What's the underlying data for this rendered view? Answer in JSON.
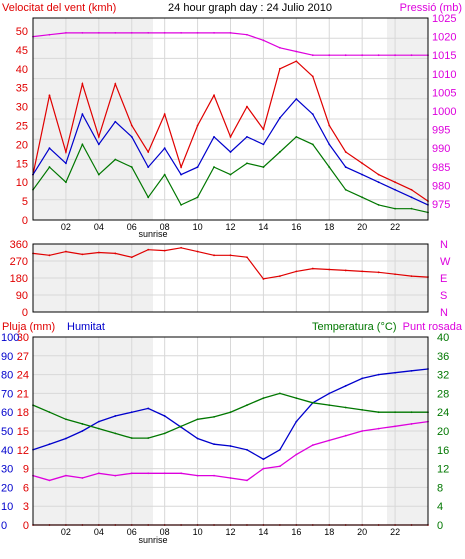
{
  "colors": {
    "red": "#e00000",
    "blue": "#0000cc",
    "green": "#007700",
    "magenta": "#dd00dd",
    "grid": "#d8d8d8",
    "daylight": "#ffffff",
    "night": "#f0f0f0"
  },
  "x_ticks": [
    "02",
    "04",
    "06",
    "08",
    "10",
    "12",
    "14",
    "16",
    "18",
    "20",
    "22"
  ],
  "sunrise_label": "sunrise",
  "chart_data": [
    {
      "type": "line",
      "title": "24 hour graph day : 24 Julio 2010",
      "left_label": "Velocitat del vent (kmh)",
      "right_label": "Pressió (mb)",
      "left_ticks": [
        "0",
        "5",
        "10",
        "15",
        "20",
        "25",
        "30",
        "35",
        "40",
        "45",
        "50"
      ],
      "right_ticks": [
        "975",
        "980",
        "985",
        "990",
        "995",
        "1000",
        "1005",
        "1010",
        "1015",
        "1020",
        "1025"
      ],
      "left_lim": [
        0,
        50
      ],
      "right_lim": [
        972,
        1025
      ],
      "x": [
        0,
        1,
        2,
        3,
        4,
        5,
        6,
        7,
        8,
        9,
        10,
        11,
        12,
        13,
        14,
        15,
        16,
        17,
        18,
        19,
        20,
        21,
        22,
        23,
        24
      ],
      "series": [
        {
          "axis": "left",
          "color": "red",
          "values": [
            12,
            33,
            18,
            36,
            22,
            36,
            25,
            18,
            28,
            14,
            25,
            33,
            22,
            30,
            24,
            40,
            42,
            38,
            25,
            18,
            15,
            12,
            10,
            8,
            5
          ]
        },
        {
          "axis": "left",
          "color": "blue",
          "values": [
            12,
            19,
            15,
            28,
            20,
            26,
            22,
            14,
            19,
            12,
            14,
            22,
            18,
            22,
            20,
            27,
            32,
            28,
            20,
            14,
            12,
            10,
            8,
            6,
            4
          ]
        },
        {
          "axis": "left",
          "color": "green",
          "values": [
            8,
            14,
            10,
            20,
            12,
            16,
            14,
            6,
            12,
            4,
            6,
            14,
            12,
            15,
            14,
            18,
            22,
            20,
            14,
            8,
            6,
            4,
            3,
            3,
            2
          ]
        },
        {
          "axis": "right",
          "color": "magenta",
          "values": [
            1020,
            1020.5,
            1021,
            1021,
            1021,
            1021,
            1021,
            1021,
            1021,
            1021,
            1021,
            1021,
            1021,
            1020.5,
            1019,
            1017,
            1016,
            1015,
            1015,
            1015,
            1015,
            1015,
            1015,
            1015,
            1015
          ]
        }
      ]
    },
    {
      "type": "line",
      "left_ticks": [
        "0",
        "90",
        "180",
        "270",
        "360"
      ],
      "right_ticks": [
        "N",
        "S",
        "E",
        "W",
        "N"
      ],
      "left_lim": [
        0,
        360
      ],
      "x": [
        0,
        1,
        2,
        3,
        4,
        5,
        6,
        7,
        8,
        9,
        10,
        11,
        12,
        13,
        14,
        15,
        16,
        17,
        18,
        19,
        20,
        21,
        22,
        23,
        24
      ],
      "series": [
        {
          "axis": "left",
          "color": "red",
          "values": [
            310,
            300,
            320,
            305,
            315,
            310,
            290,
            330,
            325,
            340,
            320,
            300,
            300,
            290,
            175,
            190,
            215,
            230,
            225,
            220,
            215,
            210,
            200,
            190,
            185
          ]
        }
      ]
    },
    {
      "type": "line",
      "left_label_1": "Pluja (mm)",
      "left_label_2": "Humitat",
      "right_label_1": "Temperatura (°C)",
      "right_label_2": "Punt rosada",
      "left_ticks_1": [
        "0",
        "3",
        "6",
        "9",
        "12",
        "15",
        "18",
        "21",
        "24",
        "27",
        "30"
      ],
      "left_ticks_2": [
        "0",
        "10",
        "20",
        "30",
        "40",
        "50",
        "60",
        "70",
        "80",
        "90",
        "100"
      ],
      "right_ticks": [
        "0",
        "4",
        "8",
        "12",
        "16",
        "20",
        "24",
        "28",
        "32",
        "36",
        "40"
      ],
      "lim_rain": [
        0,
        30
      ],
      "lim_humidity": [
        0,
        100
      ],
      "lim_temp": [
        0,
        40
      ],
      "x": [
        0,
        1,
        2,
        3,
        4,
        5,
        6,
        7,
        8,
        9,
        10,
        11,
        12,
        13,
        14,
        15,
        16,
        17,
        18,
        19,
        20,
        21,
        22,
        23,
        24
      ],
      "series": [
        {
          "name": "Pluja",
          "axis": "rain",
          "color": "red",
          "values": [
            0,
            0,
            0,
            0,
            0,
            0,
            0,
            0,
            0,
            0,
            0,
            0,
            0,
            0,
            0,
            0,
            0,
            0,
            0,
            0,
            0,
            0,
            0,
            0,
            0
          ]
        },
        {
          "name": "Humitat",
          "axis": "humidity",
          "color": "blue",
          "values": [
            40,
            43,
            46,
            50,
            55,
            58,
            60,
            62,
            58,
            52,
            46,
            43,
            42,
            40,
            35,
            40,
            55,
            65,
            70,
            74,
            78,
            80,
            81,
            82,
            83
          ]
        },
        {
          "name": "Temperatura",
          "axis": "temp",
          "color": "green",
          "values": [
            25.5,
            24,
            22.5,
            21.5,
            20.5,
            19.5,
            18.5,
            18.5,
            19.5,
            21,
            22.5,
            23,
            24,
            25.5,
            27,
            28,
            27,
            26,
            25.5,
            25,
            24.5,
            24,
            24,
            24,
            24
          ]
        },
        {
          "name": "Punt rosada",
          "axis": "temp",
          "color": "magenta",
          "values": [
            10.5,
            9.5,
            10.5,
            10,
            11,
            10.5,
            11,
            11,
            11,
            11,
            10.5,
            10.5,
            10,
            9.5,
            12,
            12.5,
            15,
            17,
            18,
            19,
            20,
            20.5,
            21,
            21.5,
            22
          ]
        }
      ]
    }
  ]
}
